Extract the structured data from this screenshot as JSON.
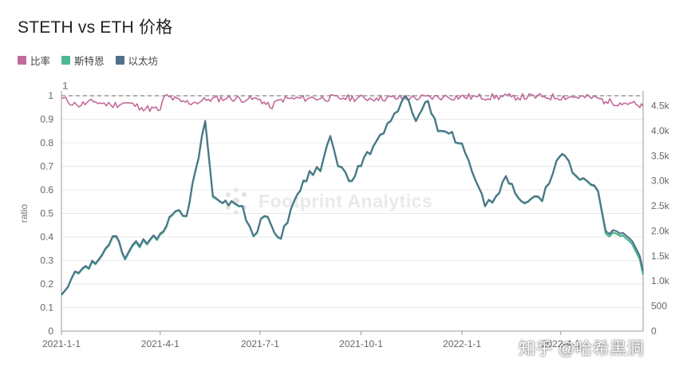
{
  "title": "STETH vs ETH 价格",
  "legend": [
    {
      "name": "比率",
      "color": "#c26b9a"
    },
    {
      "name": "斯特恩",
      "color": "#4cb892"
    },
    {
      "name": "以太坊",
      "color": "#50718a"
    }
  ],
  "watermark_text": "知乎 @哈希黑洞",
  "footprint_watermark": "Footprint Analytics",
  "chart_data": {
    "type": "line",
    "title": "STETH vs ETH 价格",
    "ylabel": "ratio",
    "y_left": {
      "min": 0,
      "max": 1,
      "ticks": [
        "0",
        "0.1",
        "0.2",
        "0.3",
        "0.4",
        "0.5",
        "0.6",
        "0.7",
        "0.8",
        "0.9",
        "1"
      ]
    },
    "y_right": {
      "min": 0,
      "max": 4700,
      "ticks": [
        {
          "v": 0,
          "label": "0"
        },
        {
          "v": 500,
          "label": "500"
        },
        {
          "v": 1000,
          "label": "1.0k"
        },
        {
          "v": 1500,
          "label": "1.5k"
        },
        {
          "v": 2000,
          "label": "2.0k"
        },
        {
          "v": 2500,
          "label": "2.5k"
        },
        {
          "v": 3000,
          "label": "3.0k"
        },
        {
          "v": 3500,
          "label": "3.5k"
        },
        {
          "v": 4000,
          "label": "4.0k"
        },
        {
          "v": 4500,
          "label": "4.5k"
        }
      ]
    },
    "x_ticks": [
      {
        "date": "2021-01-01",
        "label": "2021-1-1"
      },
      {
        "date": "2021-04-01",
        "label": "2021-4-1"
      },
      {
        "date": "2021-07-01",
        "label": "2021-7-1"
      },
      {
        "date": "2021-10-01",
        "label": "2021-10-1"
      },
      {
        "date": "2022-01-01",
        "label": "2022-1-1"
      },
      {
        "date": "2022-04-01",
        "label": "2022-4-1"
      }
    ],
    "x_range": [
      "2021-01-01",
      "2022-06-15"
    ],
    "reference_line": {
      "value": 1,
      "label": "1",
      "style": "dashed"
    },
    "legend_position": "top-left",
    "series": [
      {
        "name": "以太坊",
        "axis": "right",
        "color": "#50718a",
        "points": [
          [
            "2021-01-01",
            730
          ],
          [
            "2021-01-10",
            1050
          ],
          [
            "2021-01-20",
            1250
          ],
          [
            "2021-02-01",
            1350
          ],
          [
            "2021-02-10",
            1650
          ],
          [
            "2021-02-20",
            1900
          ],
          [
            "2021-02-28",
            1450
          ],
          [
            "2021-03-10",
            1800
          ],
          [
            "2021-03-20",
            1750
          ],
          [
            "2021-04-01",
            1950
          ],
          [
            "2021-04-15",
            2400
          ],
          [
            "2021-04-25",
            2300
          ],
          [
            "2021-05-03",
            3200
          ],
          [
            "2021-05-12",
            4200
          ],
          [
            "2021-05-19",
            2700
          ],
          [
            "2021-05-25",
            2600
          ],
          [
            "2021-06-05",
            2600
          ],
          [
            "2021-06-15",
            2500
          ],
          [
            "2021-06-25",
            1900
          ],
          [
            "2021-07-05",
            2300
          ],
          [
            "2021-07-20",
            1850
          ],
          [
            "2021-08-01",
            2600
          ],
          [
            "2021-08-15",
            3200
          ],
          [
            "2021-08-25",
            3200
          ],
          [
            "2021-09-03",
            3900
          ],
          [
            "2021-09-10",
            3300
          ],
          [
            "2021-09-20",
            3000
          ],
          [
            "2021-10-01",
            3300
          ],
          [
            "2021-10-15",
            3800
          ],
          [
            "2021-10-25",
            4150
          ],
          [
            "2021-11-10",
            4700
          ],
          [
            "2021-11-20",
            4200
          ],
          [
            "2021-12-01",
            4600
          ],
          [
            "2021-12-10",
            4000
          ],
          [
            "2021-12-20",
            3950
          ],
          [
            "2022-01-01",
            3750
          ],
          [
            "2022-01-10",
            3200
          ],
          [
            "2022-01-22",
            2500
          ],
          [
            "2022-02-01",
            2700
          ],
          [
            "2022-02-10",
            3100
          ],
          [
            "2022-02-24",
            2600
          ],
          [
            "2022-03-05",
            2650
          ],
          [
            "2022-03-15",
            2600
          ],
          [
            "2022-03-28",
            3400
          ],
          [
            "2022-04-05",
            3500
          ],
          [
            "2022-04-15",
            3100
          ],
          [
            "2022-04-25",
            3000
          ],
          [
            "2022-05-05",
            2800
          ],
          [
            "2022-05-12",
            2000
          ],
          [
            "2022-05-25",
            1950
          ],
          [
            "2022-06-05",
            1800
          ],
          [
            "2022-06-12",
            1500
          ],
          [
            "2022-06-15",
            1200
          ]
        ]
      },
      {
        "name": "斯特恩",
        "axis": "right",
        "color": "#4cb892",
        "points": [
          [
            "2021-01-01",
            720
          ],
          [
            "2021-01-10",
            1040
          ],
          [
            "2021-01-20",
            1235
          ],
          [
            "2021-02-01",
            1335
          ],
          [
            "2021-02-10",
            1630
          ],
          [
            "2021-02-20",
            1880
          ],
          [
            "2021-02-28",
            1430
          ],
          [
            "2021-03-10",
            1775
          ],
          [
            "2021-03-20",
            1730
          ],
          [
            "2021-04-01",
            1930
          ],
          [
            "2021-04-15",
            2390
          ],
          [
            "2021-04-25",
            2290
          ],
          [
            "2021-05-03",
            3190
          ],
          [
            "2021-05-12",
            4180
          ],
          [
            "2021-05-19",
            2680
          ],
          [
            "2021-05-25",
            2590
          ],
          [
            "2021-06-05",
            2590
          ],
          [
            "2021-06-15",
            2490
          ],
          [
            "2021-06-25",
            1890
          ],
          [
            "2021-07-05",
            2290
          ],
          [
            "2021-07-20",
            1840
          ],
          [
            "2021-08-01",
            2590
          ],
          [
            "2021-08-15",
            3190
          ],
          [
            "2021-08-25",
            3190
          ],
          [
            "2021-09-03",
            3885
          ],
          [
            "2021-09-10",
            3290
          ],
          [
            "2021-09-20",
            2990
          ],
          [
            "2021-10-01",
            3290
          ],
          [
            "2021-10-15",
            3790
          ],
          [
            "2021-10-25",
            4140
          ],
          [
            "2021-11-10",
            4690
          ],
          [
            "2021-11-20",
            4190
          ],
          [
            "2021-12-01",
            4590
          ],
          [
            "2021-12-10",
            3990
          ],
          [
            "2021-12-20",
            3940
          ],
          [
            "2022-01-01",
            3740
          ],
          [
            "2022-01-10",
            3190
          ],
          [
            "2022-01-22",
            2490
          ],
          [
            "2022-02-01",
            2690
          ],
          [
            "2022-02-10",
            3090
          ],
          [
            "2022-02-24",
            2590
          ],
          [
            "2022-03-05",
            2640
          ],
          [
            "2022-03-15",
            2590
          ],
          [
            "2022-03-28",
            3390
          ],
          [
            "2022-04-05",
            3490
          ],
          [
            "2022-04-15",
            3090
          ],
          [
            "2022-04-25",
            2990
          ],
          [
            "2022-05-05",
            2780
          ],
          [
            "2022-05-12",
            1950
          ],
          [
            "2022-05-25",
            1900
          ],
          [
            "2022-06-05",
            1740
          ],
          [
            "2022-06-12",
            1430
          ],
          [
            "2022-06-15",
            1130
          ]
        ]
      },
      {
        "name": "比率",
        "axis": "left",
        "color": "#c26b9a",
        "points": [
          [
            "2021-01-01",
            0.99
          ],
          [
            "2021-01-15",
            0.96
          ],
          [
            "2021-02-01",
            0.975
          ],
          [
            "2021-02-15",
            0.96
          ],
          [
            "2021-03-01",
            0.97
          ],
          [
            "2021-03-15",
            0.95
          ],
          [
            "2021-04-01",
            0.94
          ],
          [
            "2021-04-05",
            1.0
          ],
          [
            "2021-04-20",
            0.975
          ],
          [
            "2021-05-01",
            0.97
          ],
          [
            "2021-05-15",
            0.985
          ],
          [
            "2021-06-01",
            0.99
          ],
          [
            "2021-06-20",
            0.985
          ],
          [
            "2021-07-01",
            0.985
          ],
          [
            "2021-07-10",
            0.95
          ],
          [
            "2021-07-20",
            0.985
          ],
          [
            "2021-08-15",
            0.99
          ],
          [
            "2021-09-15",
            0.99
          ],
          [
            "2021-10-15",
            0.99
          ],
          [
            "2021-11-15",
            0.99
          ],
          [
            "2021-12-15",
            0.995
          ],
          [
            "2022-01-15",
            0.995
          ],
          [
            "2022-02-15",
            0.995
          ],
          [
            "2022-03-15",
            0.995
          ],
          [
            "2022-04-15",
            0.995
          ],
          [
            "2022-05-05",
            0.99
          ],
          [
            "2022-05-12",
            0.975
          ],
          [
            "2022-05-25",
            0.97
          ],
          [
            "2022-06-05",
            0.97
          ],
          [
            "2022-06-12",
            0.95
          ],
          [
            "2022-06-15",
            0.955
          ]
        ]
      }
    ]
  }
}
